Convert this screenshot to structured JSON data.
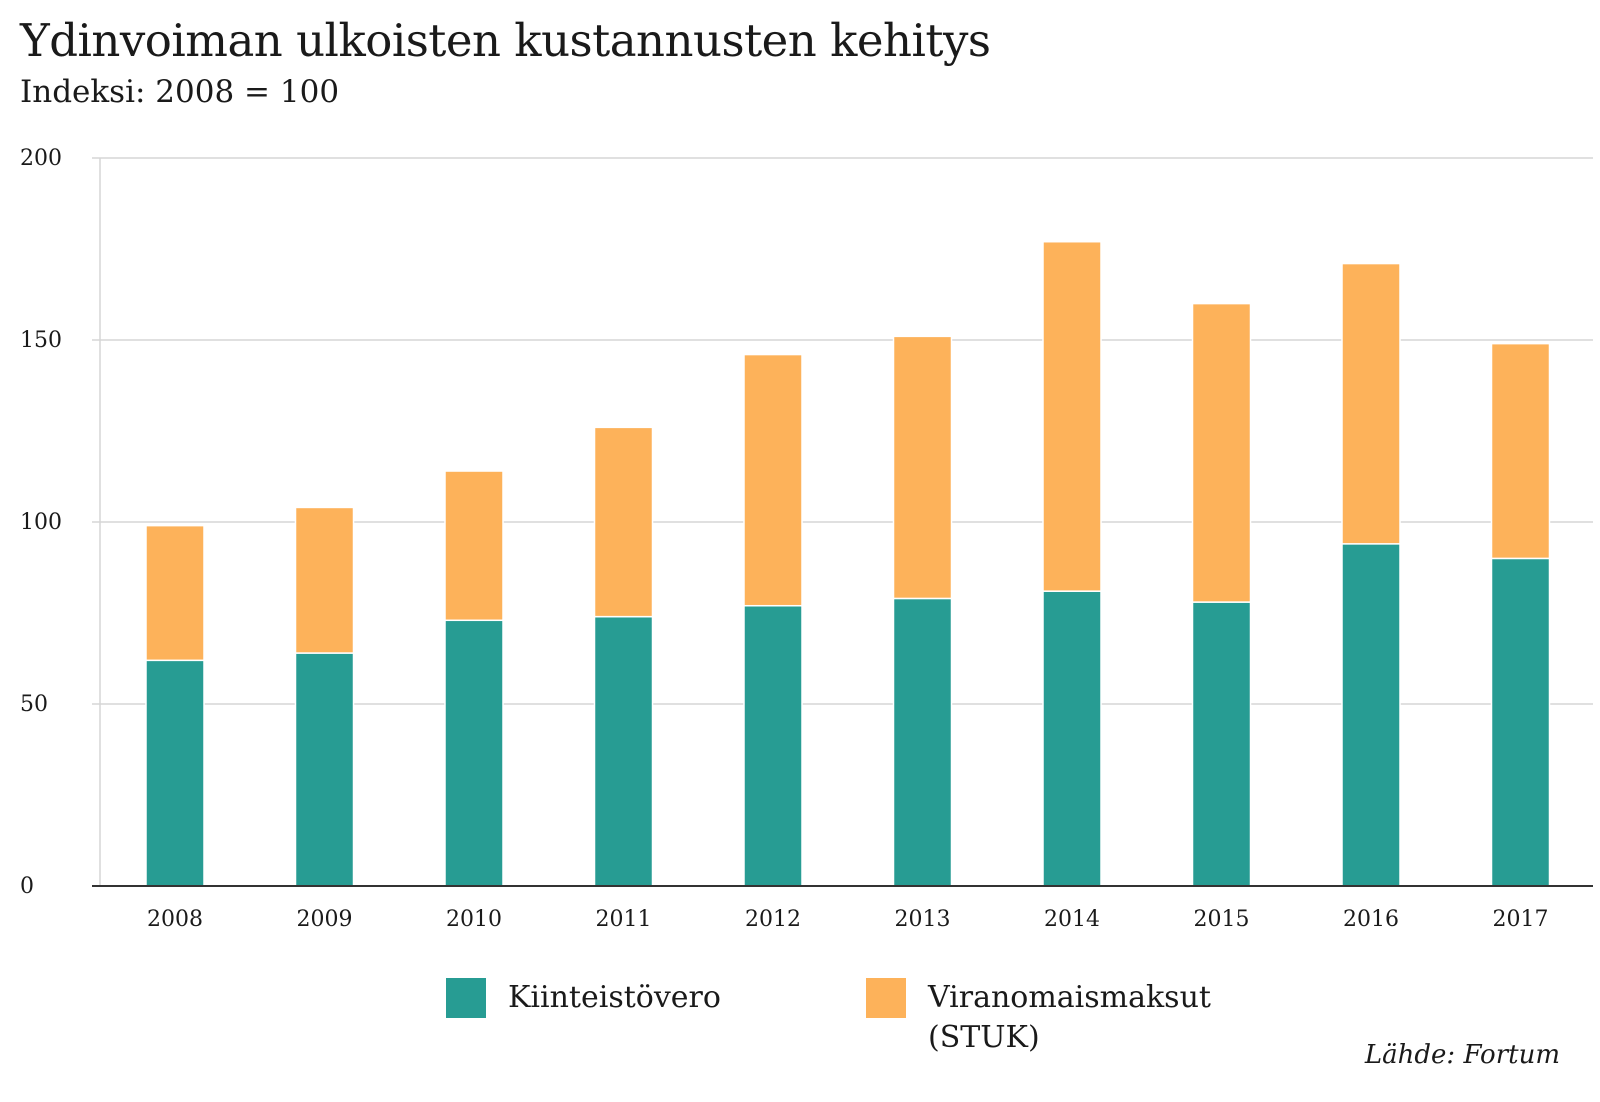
{
  "header": {
    "title": "Ydinvoiman ulkoisten kustannusten kehitys",
    "subtitle": "Indeksi: 2008 = 100"
  },
  "chart_data": {
    "type": "bar",
    "stacked": true,
    "title": "Ydinvoiman ulkoisten kustannusten kehitys",
    "subtitle": "Indeksi: 2008 = 100",
    "categories": [
      "2008",
      "2009",
      "2010",
      "2011",
      "2012",
      "2013",
      "2014",
      "2015",
      "2016",
      "2017"
    ],
    "series": [
      {
        "name": "Kiinteistövero",
        "color": "#279c93",
        "values": [
          62,
          64,
          73,
          74,
          77,
          79,
          81,
          78,
          94,
          90
        ]
      },
      {
        "name": "Viranomaismaksut (STUK)",
        "color": "#fdb25a",
        "values": [
          37,
          40,
          41,
          52,
          69,
          72,
          96,
          82,
          77,
          59
        ]
      }
    ],
    "ylim": [
      0,
      200
    ],
    "yticks": [
      0,
      50,
      100,
      150,
      200
    ],
    "grid": true,
    "legend_position": "bottom"
  },
  "legend": {
    "item1": "Kiinteistövero",
    "item2_line1": "Viranomaismaksut",
    "item2_line2": "(STUK)"
  },
  "source": "Lähde: Fortum"
}
